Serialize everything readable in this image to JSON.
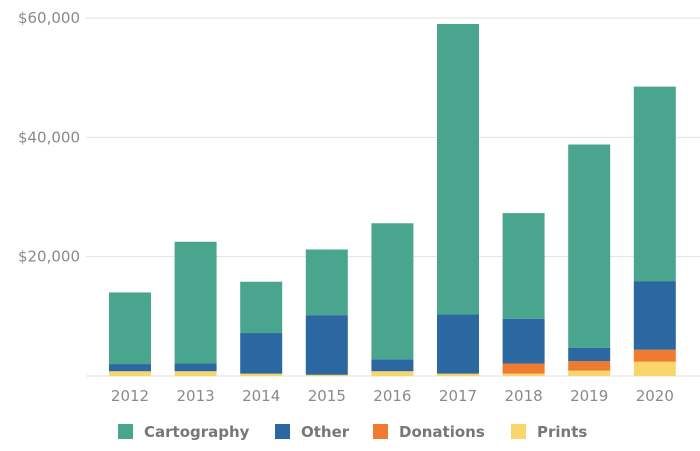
{
  "chart_data": {
    "type": "bar",
    "stacked": true,
    "categories": [
      "2012",
      "2013",
      "2014",
      "2015",
      "2016",
      "2017",
      "2018",
      "2019",
      "2020"
    ],
    "series": [
      {
        "name": "Prints",
        "color": "#f8d66b",
        "values": [
          800,
          800,
          400,
          200,
          800,
          400,
          400,
          900,
          2400
        ]
      },
      {
        "name": "Donations",
        "color": "#ef7a31",
        "values": [
          0,
          0,
          0,
          0,
          0,
          0,
          1700,
          1600,
          2000
        ]
      },
      {
        "name": "Other",
        "color": "#2b67a0",
        "values": [
          1200,
          1300,
          6800,
          10000,
          2000,
          9900,
          7500,
          2200,
          11500
        ]
      },
      {
        "name": "Cartography",
        "color": "#4aa58f",
        "values": [
          12000,
          20400,
          8600,
          11000,
          22800,
          48700,
          17700,
          34100,
          32600
        ]
      }
    ],
    "legend_order": [
      "Cartography",
      "Other",
      "Donations",
      "Prints"
    ],
    "y_ticks": [
      "$20,000",
      "$40,000",
      "$60,000"
    ],
    "y_tick_values": [
      20000,
      40000,
      60000
    ],
    "ylim": [
      0,
      60000
    ],
    "grid": true,
    "legend_position": "bottom",
    "title": "",
    "xlabel": "",
    "ylabel": ""
  }
}
